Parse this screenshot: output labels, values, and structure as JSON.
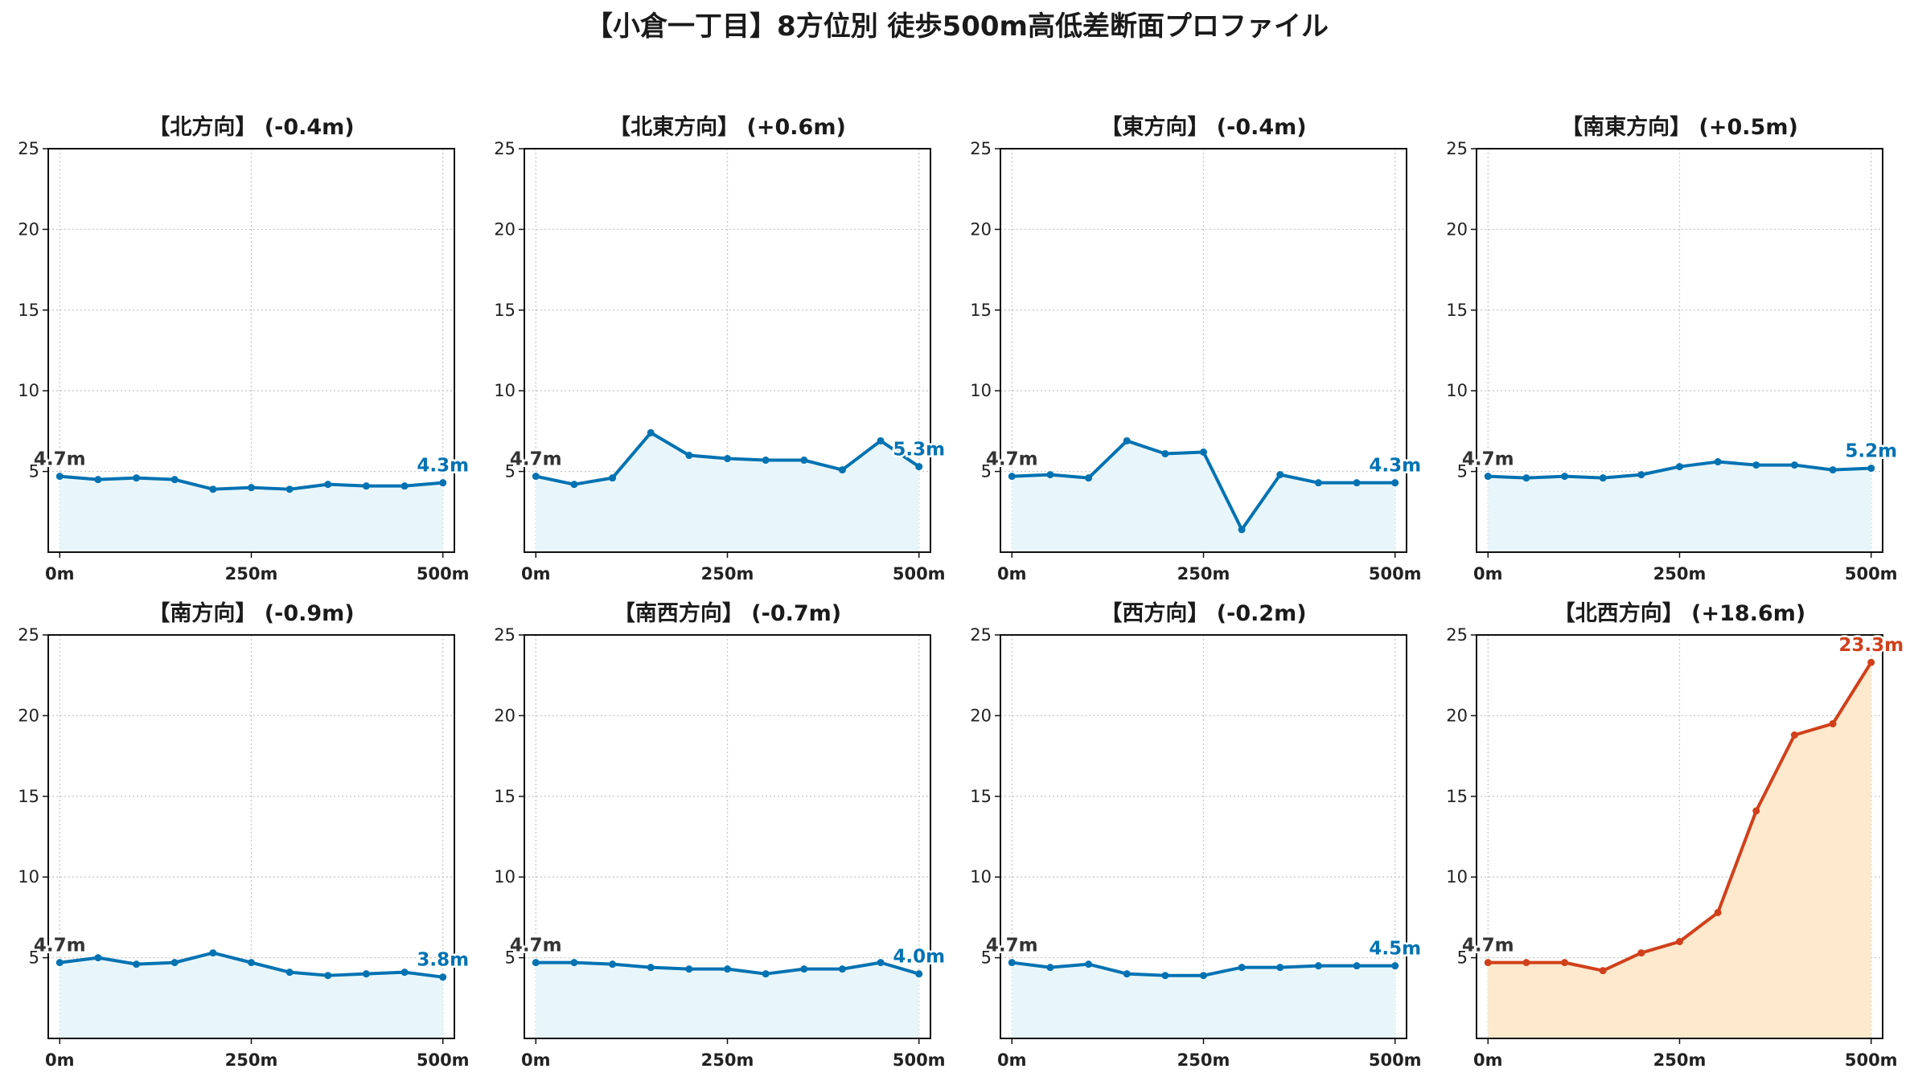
{
  "title": "【小倉一丁目】8方位別 徒歩500m高低差断面プロファイル",
  "colors": {
    "normal_line": "#0072b2",
    "normal_fill": "#e8f6fb",
    "highlight_line": "#d0401a",
    "highlight_fill": "#fde9cd",
    "start_label": "#333333"
  },
  "chart_data": [
    {
      "type": "line",
      "title": "【北方向】 (-0.4m)",
      "x": [
        0,
        50,
        100,
        150,
        200,
        250,
        300,
        350,
        400,
        450,
        500
      ],
      "y": [
        4.7,
        4.5,
        4.6,
        4.5,
        3.9,
        4.0,
        3.9,
        4.2,
        4.1,
        4.1,
        4.3
      ],
      "ylim": [
        0,
        25
      ],
      "yticks": [
        5,
        10,
        15,
        20,
        25
      ],
      "xticks": [
        "0m",
        "250m",
        "500m"
      ],
      "start_label": "4.7m",
      "end_label": "4.3m",
      "highlight": false,
      "grid": true
    },
    {
      "type": "line",
      "title": "【北東方向】 (+0.6m)",
      "x": [
        0,
        50,
        100,
        150,
        200,
        250,
        300,
        350,
        400,
        450,
        500
      ],
      "y": [
        4.7,
        4.2,
        4.6,
        7.4,
        6.0,
        5.8,
        5.7,
        5.7,
        5.1,
        6.9,
        5.3
      ],
      "ylim": [
        0,
        25
      ],
      "yticks": [
        5,
        10,
        15,
        20,
        25
      ],
      "xticks": [
        "0m",
        "250m",
        "500m"
      ],
      "start_label": "4.7m",
      "end_label": "5.3m",
      "highlight": false,
      "grid": true
    },
    {
      "type": "line",
      "title": "【東方向】 (-0.4m)",
      "x": [
        0,
        50,
        100,
        150,
        200,
        250,
        300,
        350,
        400,
        450,
        500
      ],
      "y": [
        4.7,
        4.8,
        4.6,
        6.9,
        6.1,
        6.2,
        1.4,
        4.8,
        4.3,
        4.3,
        4.3
      ],
      "ylim": [
        0,
        25
      ],
      "yticks": [
        5,
        10,
        15,
        20,
        25
      ],
      "xticks": [
        "0m",
        "250m",
        "500m"
      ],
      "start_label": "4.7m",
      "end_label": "4.3m",
      "highlight": false,
      "grid": true
    },
    {
      "type": "line",
      "title": "【南東方向】 (+0.5m)",
      "x": [
        0,
        50,
        100,
        150,
        200,
        250,
        300,
        350,
        400,
        450,
        500
      ],
      "y": [
        4.7,
        4.6,
        4.7,
        4.6,
        4.8,
        5.3,
        5.6,
        5.4,
        5.4,
        5.1,
        5.2
      ],
      "ylim": [
        0,
        25
      ],
      "yticks": [
        5,
        10,
        15,
        20,
        25
      ],
      "xticks": [
        "0m",
        "250m",
        "500m"
      ],
      "start_label": "4.7m",
      "end_label": "5.2m",
      "highlight": false,
      "grid": true
    },
    {
      "type": "line",
      "title": "【南方向】 (-0.9m)",
      "x": [
        0,
        50,
        100,
        150,
        200,
        250,
        300,
        350,
        400,
        450,
        500
      ],
      "y": [
        4.7,
        5.0,
        4.6,
        4.7,
        5.3,
        4.7,
        4.1,
        3.9,
        4.0,
        4.1,
        3.8
      ],
      "ylim": [
        0,
        25
      ],
      "yticks": [
        5,
        10,
        15,
        20,
        25
      ],
      "xticks": [
        "0m",
        "250m",
        "500m"
      ],
      "start_label": "4.7m",
      "end_label": "3.8m",
      "highlight": false,
      "grid": true
    },
    {
      "type": "line",
      "title": "【南西方向】 (-0.7m)",
      "x": [
        0,
        50,
        100,
        150,
        200,
        250,
        300,
        350,
        400,
        450,
        500
      ],
      "y": [
        4.7,
        4.7,
        4.6,
        4.4,
        4.3,
        4.3,
        4.0,
        4.3,
        4.3,
        4.7,
        4.0
      ],
      "ylim": [
        0,
        25
      ],
      "yticks": [
        5,
        10,
        15,
        20,
        25
      ],
      "xticks": [
        "0m",
        "250m",
        "500m"
      ],
      "start_label": "4.7m",
      "end_label": "4.0m",
      "highlight": false,
      "grid": true
    },
    {
      "type": "line",
      "title": "【西方向】 (-0.2m)",
      "x": [
        0,
        50,
        100,
        150,
        200,
        250,
        300,
        350,
        400,
        450,
        500
      ],
      "y": [
        4.7,
        4.4,
        4.6,
        4.0,
        3.9,
        3.9,
        4.4,
        4.4,
        4.5,
        4.5,
        4.5
      ],
      "ylim": [
        0,
        25
      ],
      "yticks": [
        5,
        10,
        15,
        20,
        25
      ],
      "xticks": [
        "0m",
        "250m",
        "500m"
      ],
      "start_label": "4.7m",
      "end_label": "4.5m",
      "highlight": false,
      "grid": true
    },
    {
      "type": "line",
      "title": "【北西方向】 (+18.6m)",
      "x": [
        0,
        50,
        100,
        150,
        200,
        250,
        300,
        350,
        400,
        450,
        500
      ],
      "y": [
        4.7,
        4.7,
        4.7,
        4.2,
        5.3,
        6.0,
        7.8,
        14.1,
        18.8,
        19.5,
        23.3
      ],
      "ylim": [
        0,
        25
      ],
      "yticks": [
        5,
        10,
        15,
        20,
        25
      ],
      "xticks": [
        "0m",
        "250m",
        "500m"
      ],
      "start_label": "4.7m",
      "end_label": "23.3m",
      "highlight": true,
      "grid": true
    }
  ]
}
